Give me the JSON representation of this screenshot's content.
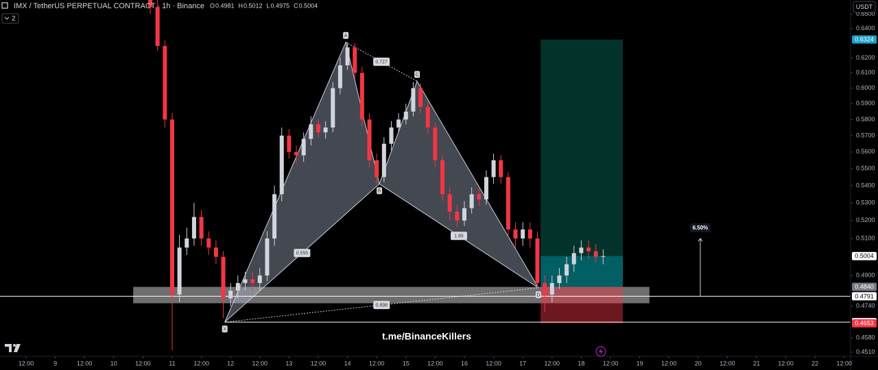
{
  "chart_data": {
    "type": "candlestick",
    "title": "IMX / TetherUS PERPETUAL CONTRACT · 1h · Binance",
    "ohlc_legend": [
      {
        "name": "O",
        "value": 0.4981
      },
      {
        "name": "H",
        "value": 0.5012
      },
      {
        "name": "L",
        "value": 0.4975
      },
      {
        "name": "C",
        "value": 0.5004
      }
    ],
    "indicator_count": 2,
    "currency": "USDT",
    "watermark": "t.me/BinanceKillers",
    "x": [
      39,
      42,
      45,
      48,
      51,
      54,
      57,
      60,
      63,
      66,
      69,
      72,
      75,
      78,
      81,
      84,
      87,
      90,
      93,
      96,
      99,
      102,
      105,
      108,
      111,
      114,
      117,
      120,
      123,
      126,
      129,
      132,
      135,
      138,
      141,
      144,
      147,
      150,
      153,
      156,
      159,
      162,
      165,
      168,
      171,
      174,
      177,
      180,
      183,
      186,
      189,
      192,
      195,
      198,
      201,
      204,
      207,
      210,
      213,
      216,
      219,
      222,
      225
    ],
    "open": [
      0.66,
      0.655,
      0.628,
      0.58,
      0.48,
      0.505,
      0.51,
      0.522,
      0.51,
      0.505,
      0.5,
      0.478,
      0.482,
      0.486,
      0.488,
      0.486,
      0.49,
      0.51,
      0.535,
      0.57,
      0.56,
      0.558,
      0.568,
      0.577,
      0.572,
      0.575,
      0.6,
      0.615,
      0.627,
      0.61,
      0.58,
      0.555,
      0.545,
      0.565,
      0.575,
      0.58,
      0.585,
      0.6,
      0.588,
      0.575,
      0.555,
      0.535,
      0.525,
      0.52,
      0.527,
      0.535,
      0.532,
      0.545,
      0.555,
      0.545,
      0.515,
      0.51,
      0.515,
      0.51,
      0.486,
      0.48,
      0.486,
      0.49,
      0.496,
      0.502,
      0.505,
      0.503,
      0.5
    ],
    "high": [
      0.66,
      0.66,
      0.632,
      0.584,
      0.512,
      0.516,
      0.53,
      0.526,
      0.514,
      0.509,
      0.503,
      0.486,
      0.49,
      0.492,
      0.492,
      0.494,
      0.514,
      0.54,
      0.575,
      0.574,
      0.564,
      0.572,
      0.582,
      0.58,
      0.579,
      0.604,
      0.62,
      0.6305,
      0.63,
      0.614,
      0.584,
      0.559,
      0.569,
      0.579,
      0.584,
      0.59,
      0.604,
      0.603,
      0.592,
      0.578,
      0.558,
      0.539,
      0.529,
      0.531,
      0.539,
      0.539,
      0.549,
      0.559,
      0.558,
      0.548,
      0.519,
      0.519,
      0.519,
      0.514,
      0.49,
      0.49,
      0.494,
      0.5,
      0.506,
      0.509,
      0.509,
      0.507,
      0.504
    ],
    "low": [
      0.65,
      0.625,
      0.575,
      0.452,
      0.476,
      0.501,
      0.506,
      0.506,
      0.501,
      0.496,
      0.468,
      0.474,
      0.478,
      0.482,
      0.482,
      0.482,
      0.487,
      0.506,
      0.531,
      0.556,
      0.553,
      0.554,
      0.564,
      0.569,
      0.568,
      0.572,
      0.596,
      0.612,
      0.606,
      0.576,
      0.551,
      0.541,
      0.542,
      0.561,
      0.572,
      0.577,
      0.582,
      0.584,
      0.571,
      0.551,
      0.531,
      0.52,
      0.516,
      0.517,
      0.524,
      0.528,
      0.529,
      0.541,
      0.541,
      0.511,
      0.505,
      0.506,
      0.505,
      0.4835,
      0.471,
      0.476,
      0.483,
      0.486,
      0.492,
      0.498,
      0.499,
      0.497,
      0.496
    ],
    "close": [
      0.655,
      0.628,
      0.58,
      0.48,
      0.505,
      0.51,
      0.522,
      0.51,
      0.505,
      0.5,
      0.478,
      0.482,
      0.486,
      0.488,
      0.486,
      0.49,
      0.51,
      0.535,
      0.57,
      0.56,
      0.558,
      0.568,
      0.577,
      0.572,
      0.575,
      0.6,
      0.615,
      0.627,
      0.61,
      0.58,
      0.555,
      0.545,
      0.565,
      0.575,
      0.58,
      0.585,
      0.6,
      0.588,
      0.575,
      0.555,
      0.535,
      0.525,
      0.52,
      0.527,
      0.535,
      0.532,
      0.545,
      0.555,
      0.545,
      0.515,
      0.51,
      0.515,
      0.51,
      0.486,
      0.48,
      0.486,
      0.49,
      0.496,
      0.502,
      0.505,
      0.503,
      0.5,
      0.5004
    ],
    "up_color": "#d1d4dc",
    "down_color": "#f23645",
    "log_scale": true,
    "grid": false,
    "xlim": [
      -22.7,
      326.6
    ],
    "xticks": [
      {
        "value": -12,
        "label": "12:00"
      },
      {
        "value": 0,
        "label": "9"
      },
      {
        "value": 12,
        "label": "12:00"
      },
      {
        "value": 24,
        "label": "10"
      },
      {
        "value": 36,
        "label": "12:00"
      },
      {
        "value": 48,
        "label": "11"
      },
      {
        "value": 60,
        "label": "12:00"
      },
      {
        "value": 72,
        "label": "12"
      },
      {
        "value": 84,
        "label": "12:00"
      },
      {
        "value": 96,
        "label": "13"
      },
      {
        "value": 108,
        "label": "12:00"
      },
      {
        "value": 120,
        "label": "14"
      },
      {
        "value": 132,
        "label": "12:00"
      },
      {
        "value": 144,
        "label": "15"
      },
      {
        "value": 156,
        "label": "12:00"
      },
      {
        "value": 168,
        "label": "16"
      },
      {
        "value": 180,
        "label": "12:00"
      },
      {
        "value": 192,
        "label": "17"
      },
      {
        "value": 204,
        "label": "12:00"
      },
      {
        "value": 216,
        "label": "18"
      },
      {
        "value": 228,
        "label": "12:00"
      },
      {
        "value": 240,
        "label": "19"
      },
      {
        "value": 252,
        "label": "12:00"
      },
      {
        "value": 264,
        "label": "20"
      },
      {
        "value": 276,
        "label": "12:00"
      },
      {
        "value": 288,
        "label": "21"
      },
      {
        "value": 300,
        "label": "12:00"
      },
      {
        "value": 312,
        "label": "22"
      },
      {
        "value": 324,
        "label": "12:00"
      }
    ],
    "ylim": [
      0.449,
      0.66
    ],
    "yticks": [
      {
        "value": 0.65,
        "label": "0.6500"
      },
      {
        "value": 0.64,
        "label": "0.6400"
      },
      {
        "value": 0.62,
        "label": "0.6200"
      },
      {
        "value": 0.61,
        "label": "0.6100"
      },
      {
        "value": 0.6,
        "label": "0.6000"
      },
      {
        "value": 0.59,
        "label": "0.5900"
      },
      {
        "value": 0.58,
        "label": "0.5800"
      },
      {
        "value": 0.57,
        "label": "0.5700"
      },
      {
        "value": 0.56,
        "label": "0.5600"
      },
      {
        "value": 0.55,
        "label": "0.5500"
      },
      {
        "value": 0.54,
        "label": "0.5400"
      },
      {
        "value": 0.53,
        "label": "0.5300"
      },
      {
        "value": 0.52,
        "label": "0.5200"
      },
      {
        "value": 0.51,
        "label": "0.5100"
      },
      {
        "value": 0.49,
        "label": "0.4900"
      },
      {
        "value": 0.474,
        "label": "0.4740"
      },
      {
        "value": 0.458,
        "label": "0.4580"
      },
      {
        "value": 0.451,
        "label": "0.4510"
      }
    ],
    "pattern": {
      "points": [
        {
          "label": "X",
          "x": 69.6,
          "y": 0.4659
        },
        {
          "label": "A",
          "x": 119.3,
          "y": 0.6305
        },
        {
          "label": "B",
          "x": 133.1,
          "y": 0.541
        },
        {
          "label": "C",
          "x": 148.6,
          "y": 0.6045
        },
        {
          "label": "D",
          "x": 198.4,
          "y": 0.4835
        }
      ],
      "ratios": [
        0.555,
        0.727,
        1.85,
        0.898
      ]
    },
    "position": {
      "x_start": 199.3,
      "x_end": 233.1,
      "entry": {
        "value": 0.484,
        "label": "0.4840"
      },
      "target": 0.6324,
      "stop": 0.4653
    },
    "zone": {
      "x": [
        32,
        244
      ],
      "y": [
        0.4755,
        0.484
      ]
    },
    "levels": [
      0.4791,
      0.4659
    ],
    "measure": {
      "x": 264.9,
      "from": 0.4791,
      "to": 0.51,
      "value": {
        "value": 6.5,
        "label": "6.50%"
      }
    }
  }
}
